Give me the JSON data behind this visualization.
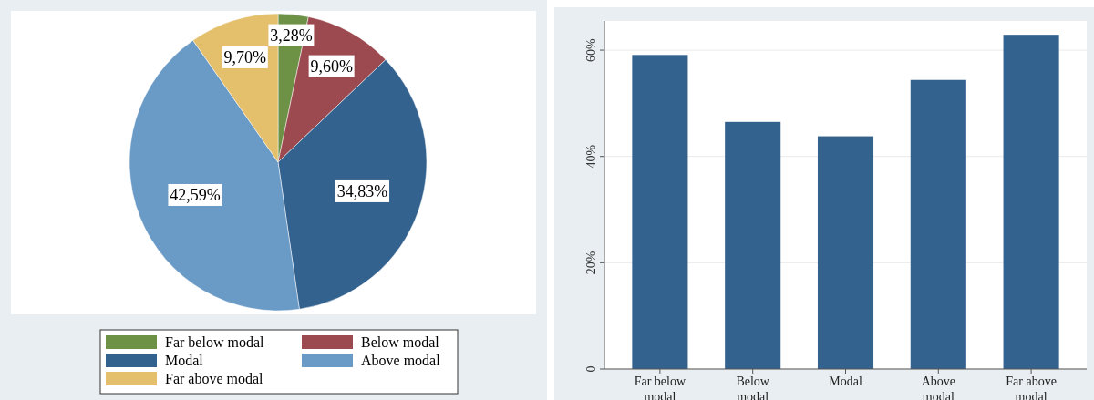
{
  "chart_data": [
    {
      "type": "pie",
      "categories": [
        "Far below modal",
        "Below modal",
        "Modal",
        "Above modal",
        "Far above modal"
      ],
      "values": [
        3.28,
        9.6,
        34.83,
        42.59,
        9.7
      ],
      "value_labels": [
        "3,28%",
        "9,60%",
        "34,83%",
        "42,59%",
        "9,70%"
      ],
      "colors": [
        "#6d9145",
        "#9c4a4f",
        "#34628f",
        "#6a9ac6",
        "#e4bf6c"
      ],
      "legend": "bottom"
    },
    {
      "type": "bar",
      "categories": [
        "Far below modal",
        "Below modal",
        "Modal",
        "Above modal",
        "Far above modal"
      ],
      "values": [
        59.1,
        46.5,
        43.8,
        54.4,
        62.9
      ],
      "color": "#34628f",
      "ylim": [
        0,
        65.5
      ],
      "yticks": [
        0,
        {
          "value": 20,
          "label": "20%"
        },
        {
          "value": 40,
          "label": "40%"
        },
        {
          "value": 60,
          "label": "60%"
        }
      ],
      "grid": "y"
    }
  ]
}
